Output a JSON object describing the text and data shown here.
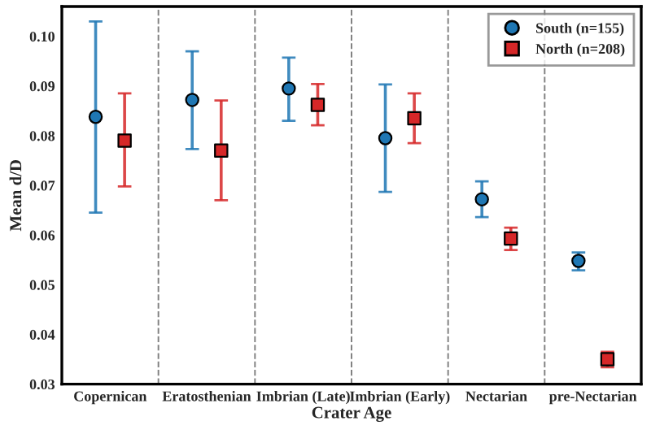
{
  "chart_data": {
    "type": "scatter",
    "xlabel": "Crater Age",
    "ylabel": "Mean d/D",
    "categories": [
      "Copernican",
      "Eratosthenian",
      "Imbrian (Late)",
      "Imbrian (Early)",
      "Nectarian",
      "pre-Nectarian"
    ],
    "series": [
      {
        "name": "South (n=155)",
        "color": "#1f77b4",
        "marker": "circle",
        "values": [
          0.0838,
          0.0872,
          0.0895,
          0.0795,
          0.0672,
          0.0548
        ],
        "errors": [
          [
            0.0645,
            0.103
          ],
          [
            0.0773,
            0.097
          ],
          [
            0.083,
            0.0957
          ],
          [
            0.0687,
            0.0903
          ],
          [
            0.0636,
            0.0708
          ],
          [
            0.0529,
            0.0565
          ]
        ]
      },
      {
        "name": "North (n=208)",
        "color": "#d62728",
        "marker": "square",
        "values": [
          0.079,
          0.077,
          0.0862,
          0.0835,
          0.0593,
          0.035
        ],
        "errors": [
          [
            0.0698,
            0.0885
          ],
          [
            0.067,
            0.0871
          ],
          [
            0.0821,
            0.0904
          ],
          [
            0.0785,
            0.0885
          ],
          [
            0.057,
            0.0615
          ],
          [
            0.0334,
            0.0365
          ]
        ]
      }
    ],
    "ylim": [
      0.03,
      0.106
    ],
    "yticks": [
      {
        "value": 0.03,
        "label": "0.03"
      },
      {
        "value": 0.04,
        "label": "0.04"
      },
      {
        "value": 0.05,
        "label": "0.05"
      },
      {
        "value": 0.06,
        "label": "0.06"
      },
      {
        "value": 0.07,
        "label": "0.07"
      },
      {
        "value": 0.08,
        "label": "0.08"
      },
      {
        "value": 0.09,
        "label": "0.09"
      },
      {
        "value": 0.1,
        "label": "0.10"
      }
    ],
    "grid": "x",
    "legend": "top right"
  }
}
